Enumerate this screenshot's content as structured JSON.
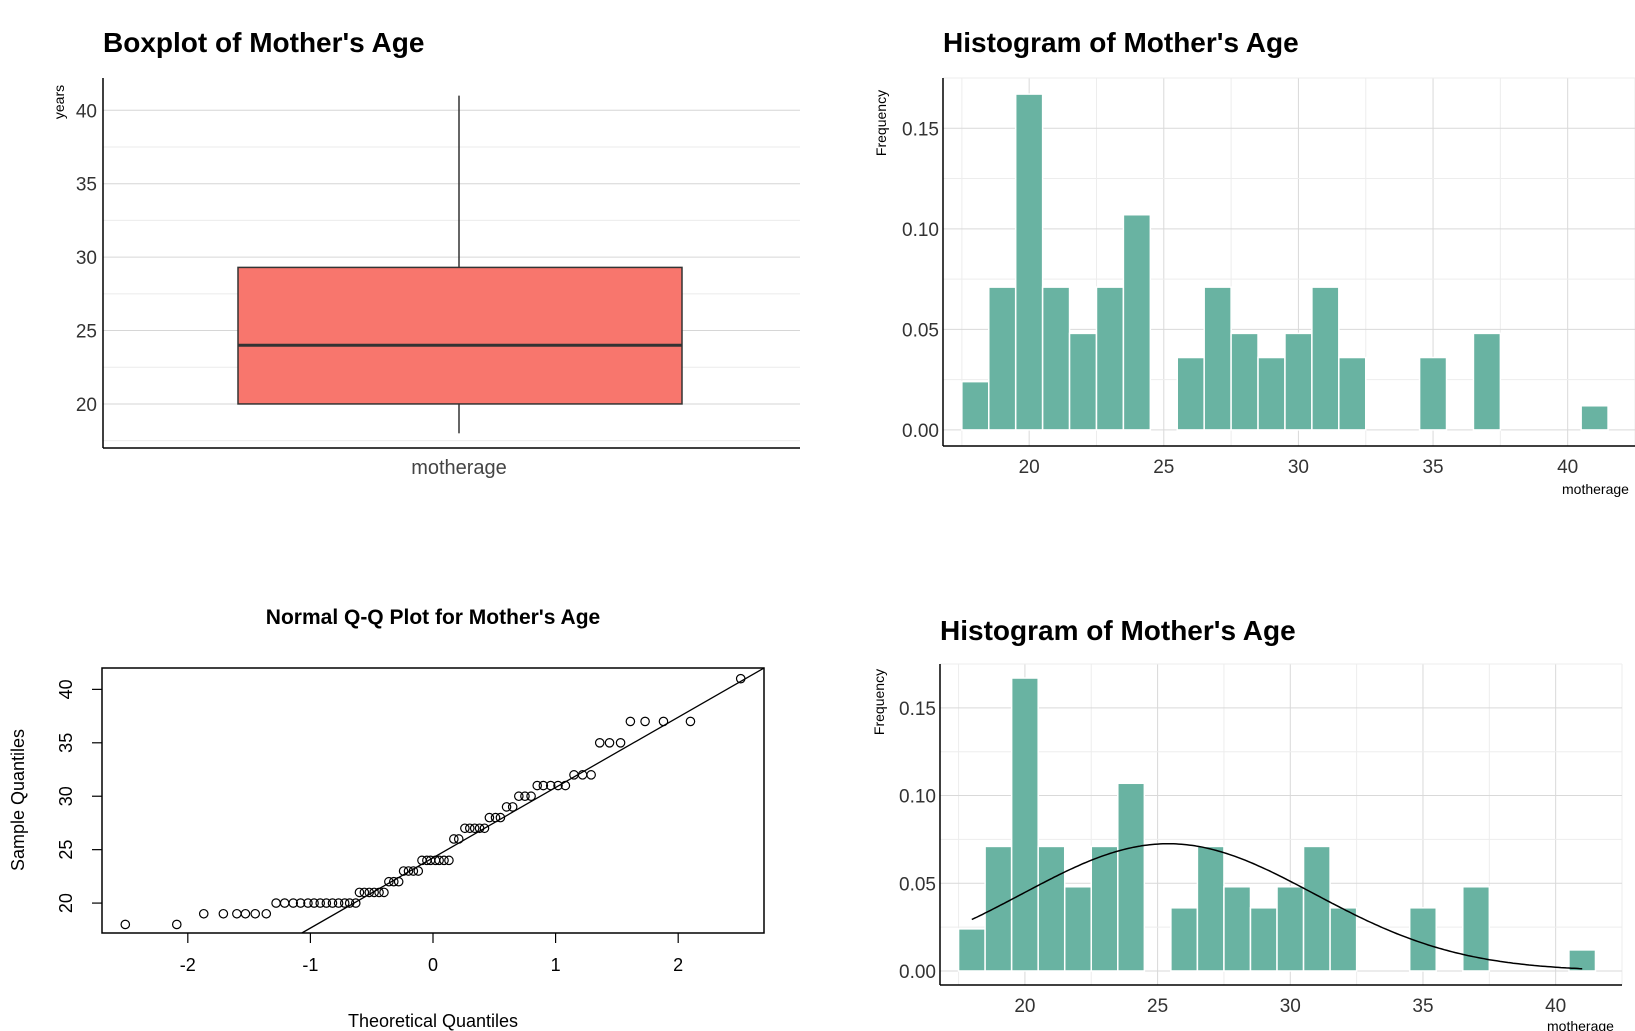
{
  "chart_data": [
    {
      "type": "boxplot",
      "title": "Boxplot of Mother's Age",
      "ylabel": "years",
      "category": "motherage",
      "ylim": [
        17,
        42.2
      ],
      "yticks": [
        20,
        25,
        30,
        35,
        40
      ],
      "stats": {
        "min": 18,
        "q1": 20,
        "median": 24,
        "q3": 29.3,
        "max": 41
      },
      "fill_color": "#F8766D"
    },
    {
      "type": "bar",
      "title": "Histogram of Mother's Age",
      "xlabel": "motherage",
      "ylabel": "Frequency",
      "xlim": [
        16.8,
        42.5
      ],
      "ylim": [
        -0.008,
        0.175
      ],
      "xticks": [
        20,
        25,
        30,
        35,
        40
      ],
      "yticks": [
        "0.00",
        "0.05",
        "0.10",
        "0.15"
      ],
      "bin_width": 1,
      "x": [
        18,
        19,
        20,
        21,
        22,
        23,
        24,
        25,
        26,
        27,
        28,
        29,
        30,
        31,
        32,
        33,
        34,
        35,
        36,
        37,
        38,
        39,
        40,
        41
      ],
      "values": [
        0.024,
        0.071,
        0.167,
        0.071,
        0.048,
        0.071,
        0.107,
        0,
        0.036,
        0.071,
        0.048,
        0.036,
        0.048,
        0.071,
        0.036,
        0,
        0,
        0.036,
        0,
        0.048,
        0,
        0,
        0,
        0.012
      ],
      "bar_color": "#69B3A2"
    },
    {
      "type": "scatter",
      "title": "Normal Q-Q Plot for Mother's Age",
      "xlabel": "Theoretical Quantiles",
      "ylabel": "Sample Quantiles",
      "xlim": [
        -2.7,
        2.7
      ],
      "ylim": [
        17.2,
        42
      ],
      "xticks": [
        -2,
        -1,
        0,
        1,
        2
      ],
      "yticks": [
        20,
        25,
        30,
        35,
        40
      ],
      "reference_line": {
        "x": [
          -1.07,
          2.7
        ],
        "y": [
          17.2,
          42
        ]
      },
      "points": [
        [
          -2.51,
          18
        ],
        [
          -2.09,
          18
        ],
        [
          -1.87,
          19
        ],
        [
          -1.71,
          19
        ],
        [
          -1.6,
          19
        ],
        [
          -1.53,
          19
        ],
        [
          -1.45,
          19
        ],
        [
          -1.36,
          19
        ],
        [
          -1.28,
          20
        ],
        [
          -1.21,
          20
        ],
        [
          -1.14,
          20
        ],
        [
          -1.08,
          20
        ],
        [
          -1.02,
          20
        ],
        [
          -0.97,
          20
        ],
        [
          -0.92,
          20
        ],
        [
          -0.87,
          20
        ],
        [
          -0.82,
          20
        ],
        [
          -0.77,
          20
        ],
        [
          -0.72,
          20
        ],
        [
          -0.68,
          20
        ],
        [
          -0.63,
          20
        ],
        [
          -0.6,
          21
        ],
        [
          -0.56,
          21
        ],
        [
          -0.52,
          21
        ],
        [
          -0.48,
          21
        ],
        [
          -0.44,
          21
        ],
        [
          -0.4,
          21
        ],
        [
          -0.36,
          22
        ],
        [
          -0.32,
          22
        ],
        [
          -0.28,
          22
        ],
        [
          -0.24,
          23
        ],
        [
          -0.2,
          23
        ],
        [
          -0.16,
          23
        ],
        [
          -0.12,
          23
        ],
        [
          -0.09,
          24
        ],
        [
          -0.05,
          24
        ],
        [
          -0.02,
          24
        ],
        [
          0.02,
          24
        ],
        [
          0.05,
          24
        ],
        [
          0.09,
          24
        ],
        [
          0.13,
          24
        ],
        [
          0.17,
          26
        ],
        [
          0.21,
          26
        ],
        [
          0.26,
          27
        ],
        [
          0.3,
          27
        ],
        [
          0.34,
          27
        ],
        [
          0.38,
          27
        ],
        [
          0.42,
          27
        ],
        [
          0.46,
          28
        ],
        [
          0.51,
          28
        ],
        [
          0.55,
          28
        ],
        [
          0.6,
          29
        ],
        [
          0.65,
          29
        ],
        [
          0.7,
          30
        ],
        [
          0.75,
          30
        ],
        [
          0.8,
          30
        ],
        [
          0.85,
          31
        ],
        [
          0.9,
          31
        ],
        [
          0.96,
          31
        ],
        [
          1.02,
          31
        ],
        [
          1.08,
          31
        ],
        [
          1.15,
          32
        ],
        [
          1.22,
          32
        ],
        [
          1.29,
          32
        ],
        [
          1.36,
          35
        ],
        [
          1.44,
          35
        ],
        [
          1.53,
          35
        ],
        [
          1.61,
          37
        ],
        [
          1.73,
          37
        ],
        [
          1.88,
          37
        ],
        [
          2.1,
          37
        ],
        [
          2.51,
          41
        ]
      ]
    },
    {
      "type": "bar",
      "title": "Histogram of Mother's Age",
      "xlabel": "motherage",
      "ylabel": "Frequency",
      "xlim": [
        16.8,
        42.5
      ],
      "ylim": [
        -0.008,
        0.175
      ],
      "xticks": [
        20,
        25,
        30,
        35,
        40
      ],
      "yticks": [
        "0.00",
        "0.05",
        "0.10",
        "0.15"
      ],
      "bin_width": 1,
      "x": [
        18,
        19,
        20,
        21,
        22,
        23,
        24,
        25,
        26,
        27,
        28,
        29,
        30,
        31,
        32,
        33,
        34,
        35,
        36,
        37,
        38,
        39,
        40,
        41
      ],
      "values": [
        0.024,
        0.071,
        0.167,
        0.071,
        0.048,
        0.071,
        0.107,
        0,
        0.036,
        0.071,
        0.048,
        0.036,
        0.048,
        0.071,
        0.036,
        0,
        0,
        0.036,
        0,
        0.048,
        0,
        0,
        0,
        0.012
      ],
      "bar_color": "#69B3A2",
      "density_curve": {
        "mean": 25.4,
        "sd": 5.5,
        "x_range": [
          18,
          41
        ],
        "color": "#000000"
      }
    }
  ]
}
